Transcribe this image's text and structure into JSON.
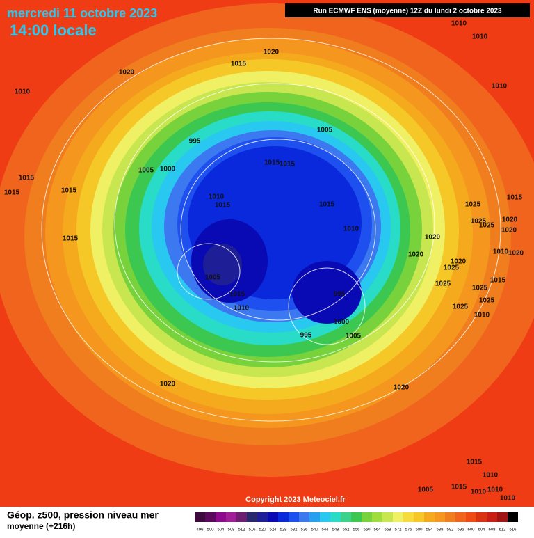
{
  "header": {
    "date": "mercredi 11 octobre 2023",
    "time": "14:00 locale",
    "run": "Run ECMWF ENS (moyenne) 12Z du lundi 2 octobre 2023"
  },
  "isobar_labels": [
    "1010",
    "1010",
    "1020",
    "1015",
    "1020",
    "1010",
    "1010",
    "1005",
    "995",
    "1005",
    "1000",
    "1015",
    "1015",
    "1015",
    "1015",
    "1015",
    "1010",
    "1015",
    "1015",
    "1025",
    "1015",
    "1025",
    "1025",
    "1020",
    "1020",
    "1010",
    "1020",
    "1015",
    "1020",
    "1010",
    "1020",
    "1020",
    "1025",
    "1005",
    "1025",
    "1025",
    "1015",
    "1015",
    "995",
    "1025",
    "1010",
    "1025",
    "1010",
    "1000",
    "995",
    "1005",
    "1020",
    "1020",
    "1015",
    "1010",
    "1015",
    "1010",
    "1010",
    "1005",
    "1010"
  ],
  "footer": {
    "title": "Géop. z500, pression niveau mer",
    "subtitle": "moyenne  (+216h)",
    "copyright": "Copyright 2023 Meteociel.fr"
  },
  "colorbar": {
    "labels": [
      496,
      500,
      504,
      508,
      512,
      516,
      520,
      524,
      528,
      532,
      536,
      540,
      544,
      548,
      552,
      556,
      560,
      564,
      568,
      572,
      576,
      580,
      584,
      588,
      592,
      596,
      600,
      604,
      608,
      612,
      616
    ],
    "colors": [
      "#3c0a3c",
      "#5a0a5a",
      "#8c0a8c",
      "#a01e96",
      "#6e1e6e",
      "#28286e",
      "#1e1e96",
      "#0a0ab4",
      "#0a28dc",
      "#1e50f0",
      "#3c78f0",
      "#28a0f0",
      "#28c8f0",
      "#28dcc8",
      "#3cd28c",
      "#3cc850",
      "#78d23c",
      "#a0dc3c",
      "#c8e650",
      "#f0f064",
      "#f5dc3c",
      "#f5c828",
      "#f5aa1e",
      "#f5961e",
      "#f07d1e",
      "#f0641e",
      "#f04b14",
      "#dc3214",
      "#c81e14",
      "#a01414",
      "#000000"
    ]
  }
}
